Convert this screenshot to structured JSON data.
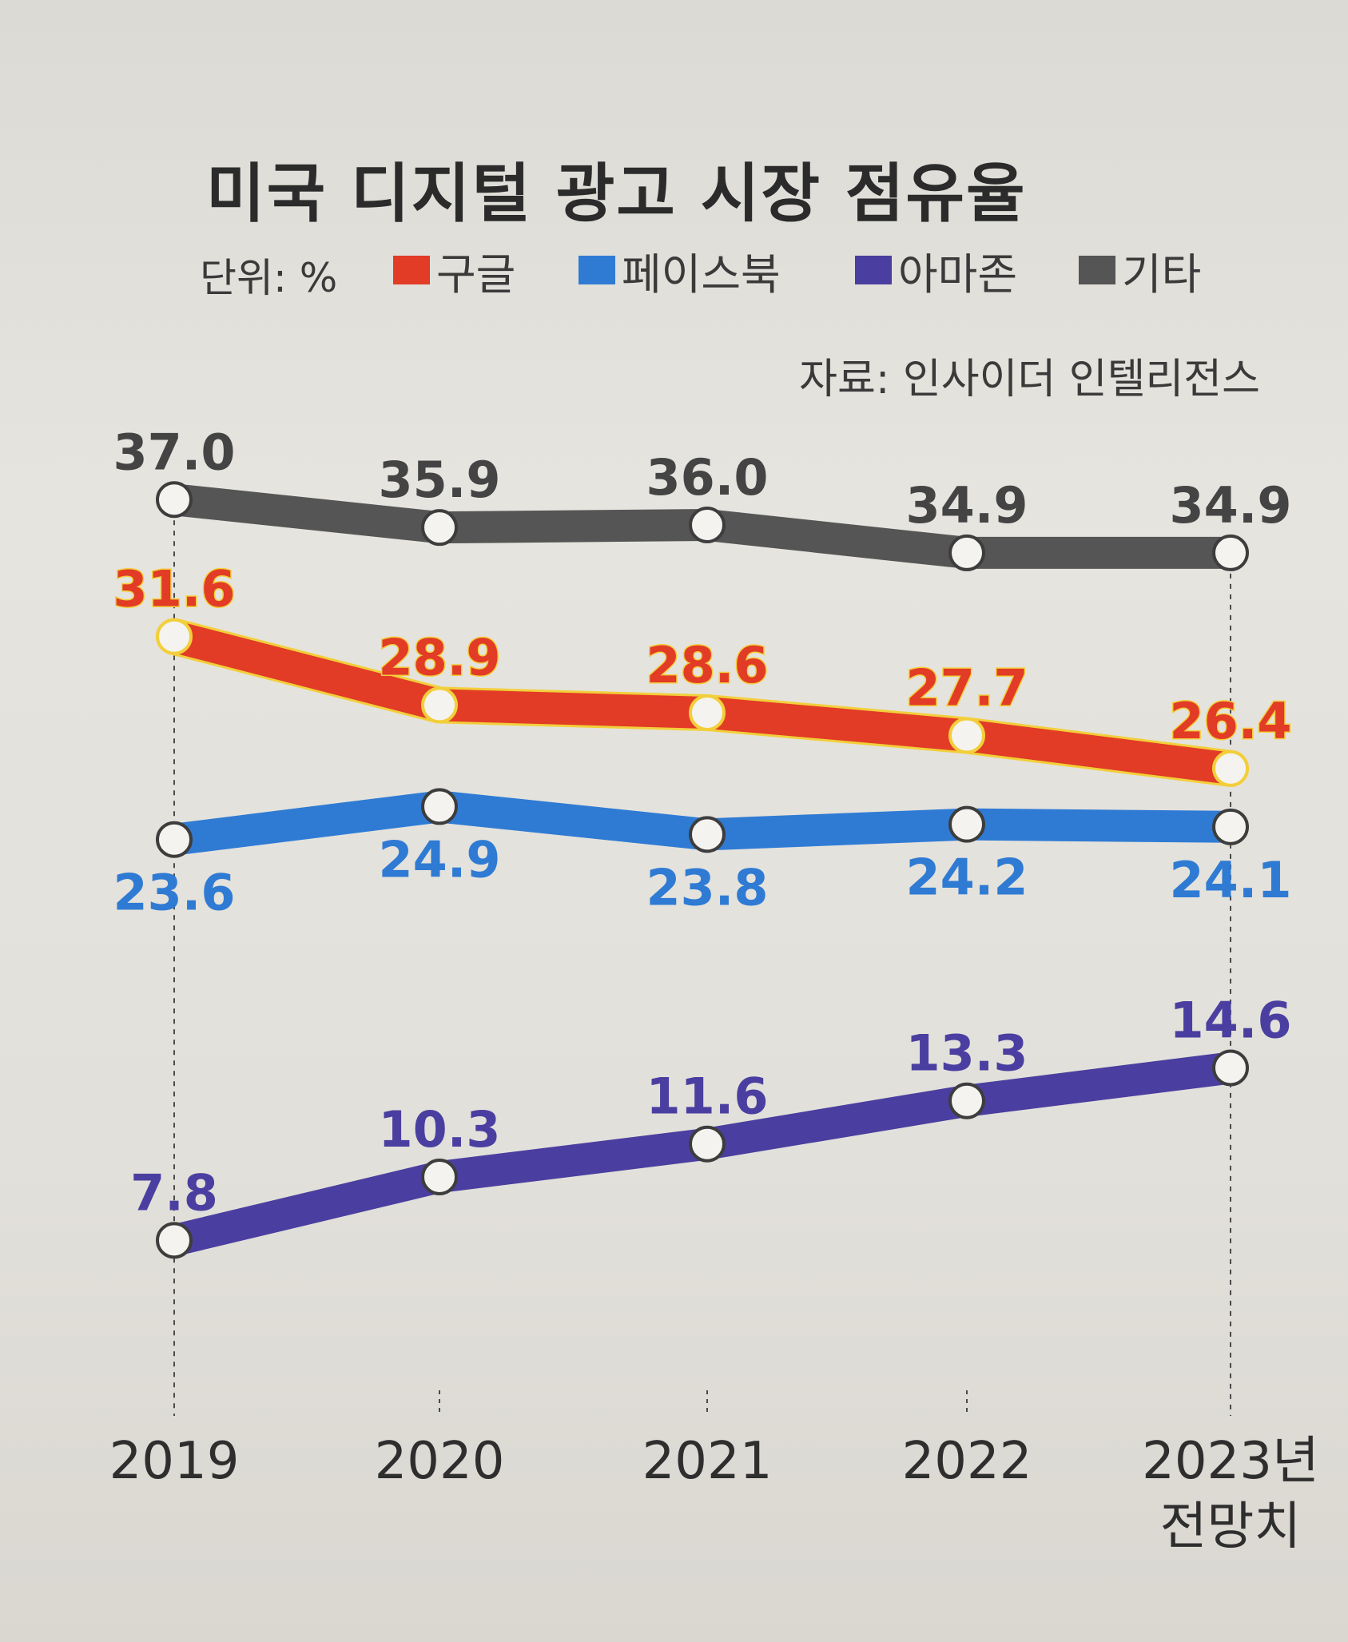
{
  "title": "미국 디지털 광고 시장 점유율",
  "unit": "단위: %",
  "source": "자료: 인사이더 인텔리전스",
  "chart_data": {
    "type": "line",
    "title": "미국 디지털 광고 시장 점유율",
    "categories": [
      "2019",
      "2020",
      "2021",
      "2022",
      "2023년 전망치"
    ],
    "x_tick_lines": [
      [
        "2019"
      ],
      [
        "2020"
      ],
      [
        "2021"
      ],
      [
        "2022"
      ],
      [
        "2023년",
        "전망치"
      ]
    ],
    "ylim": [
      0,
      40
    ],
    "grid": false,
    "legend_position": "top",
    "series": [
      {
        "name": "구글",
        "color": "#e23b26",
        "values": [
          31.6,
          28.9,
          28.6,
          27.7,
          26.4
        ]
      },
      {
        "name": "페이스북",
        "color": "#2f7bd4",
        "values": [
          23.6,
          24.9,
          23.8,
          24.2,
          24.1
        ]
      },
      {
        "name": "아마존",
        "color": "#4a3fa0",
        "values": [
          7.8,
          10.3,
          11.6,
          13.3,
          14.6
        ]
      },
      {
        "name": "기타",
        "color": "#555555",
        "values": [
          37.0,
          35.9,
          36.0,
          34.9,
          34.9
        ]
      }
    ]
  }
}
